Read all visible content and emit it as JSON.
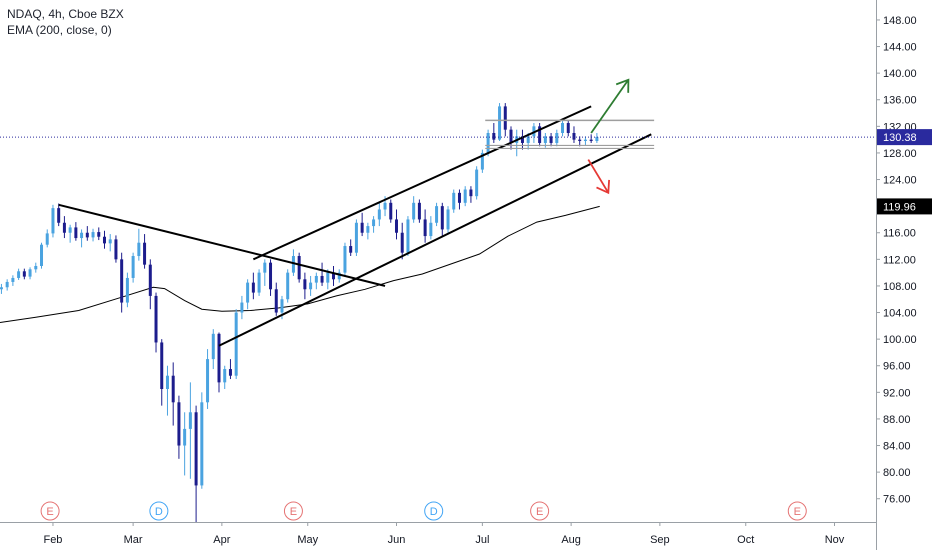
{
  "header": {
    "symbol_line": "NDAQ, 4h, Cboe BZX",
    "indicator_line": "EMA (200, close, 0)"
  },
  "chart_data": {
    "type": "candlestick",
    "y_ticks": [
      76,
      80,
      84,
      88,
      92,
      96,
      100,
      104,
      108,
      112,
      116,
      120,
      124,
      128,
      132,
      136,
      140,
      144,
      148
    ],
    "y_tick_labels": [
      "76.00",
      "80.00",
      "84.00",
      "88.00",
      "92.00",
      "96.00",
      "100.00",
      "104.00",
      "108.00",
      "112.00",
      "116.00",
      "120.00",
      "124.00",
      "128.00",
      "132.00",
      "136.00",
      "140.00",
      "144.00",
      "148.00"
    ],
    "ylim": [
      72.5,
      151
    ],
    "x_ticks": [
      {
        "label": "Feb",
        "day": 31
      },
      {
        "label": "Mar",
        "day": 59
      },
      {
        "label": "Apr",
        "day": 90
      },
      {
        "label": "May",
        "day": 120
      },
      {
        "label": "Jun",
        "day": 151
      },
      {
        "label": "Jul",
        "day": 181
      },
      {
        "label": "Aug",
        "day": 212
      },
      {
        "label": "Sep",
        "day": 243
      },
      {
        "label": "Oct",
        "day": 273
      },
      {
        "label": "Nov",
        "day": 304
      }
    ],
    "xlim_days": [
      12.5,
      318.5
    ],
    "last_price": {
      "label": "130.38",
      "value": 130.38,
      "color": "#2a2a9e"
    },
    "ema_price": {
      "label": "119.96",
      "value": 119.96,
      "color": "#000000"
    },
    "ema": {
      "name": "EMA (200, close, 0)",
      "color": "#000000",
      "points": [
        [
          12.5,
          102.5
        ],
        [
          25,
          103.3
        ],
        [
          40,
          104.3
        ],
        [
          55,
          106.3
        ],
        [
          66,
          107.8
        ],
        [
          70,
          107.6
        ],
        [
          77,
          105.8
        ],
        [
          83,
          104.5
        ],
        [
          90,
          104.2
        ],
        [
          100,
          104.3
        ],
        [
          110,
          104.7
        ],
        [
          120,
          105.3
        ],
        [
          130,
          106.5
        ],
        [
          140,
          107.5
        ],
        [
          150,
          108.8
        ],
        [
          160,
          109.8
        ],
        [
          170,
          111.3
        ],
        [
          180,
          112.8
        ],
        [
          190,
          115.5
        ],
        [
          200,
          117.6
        ],
        [
          210,
          118.6
        ],
        [
          222,
          119.96
        ]
      ]
    },
    "candles": [
      [
        13,
        107.5,
        108.3,
        106.8,
        107.8
      ],
      [
        15,
        107.8,
        109.0,
        107.3,
        108.6
      ],
      [
        17,
        108.6,
        109.6,
        108.0,
        109.2
      ],
      [
        19,
        109.2,
        110.6,
        108.9,
        110.2
      ],
      [
        21,
        110.2,
        110.6,
        109.0,
        109.4
      ],
      [
        23,
        109.4,
        110.8,
        109.0,
        110.5
      ],
      [
        25,
        110.5,
        111.5,
        110.0,
        111.0
      ],
      [
        27,
        111.0,
        114.5,
        110.6,
        114.2
      ],
      [
        29,
        114.2,
        116.5,
        113.8,
        115.9
      ],
      [
        31,
        115.9,
        120.2,
        115.3,
        119.7
      ],
      [
        33,
        119.7,
        120.4,
        117.0,
        117.5
      ],
      [
        35,
        117.5,
        118.5,
        115.2,
        116.0
      ],
      [
        37,
        116.0,
        117.2,
        114.5,
        116.8
      ],
      [
        39,
        116.8,
        117.6,
        114.8,
        115.2
      ],
      [
        41,
        115.2,
        116.5,
        113.8,
        116.0
      ],
      [
        43,
        116.0,
        117.0,
        114.8,
        115.3
      ],
      [
        45,
        115.3,
        116.6,
        114.7,
        116.1
      ],
      [
        47,
        116.1,
        116.8,
        114.9,
        115.4
      ],
      [
        49,
        115.4,
        116.3,
        113.6,
        114.4
      ],
      [
        51,
        114.4,
        115.8,
        113.2,
        115.0
      ],
      [
        53,
        115.0,
        115.6,
        111.5,
        112.0
      ],
      [
        55,
        112.0,
        113.0,
        104.0,
        105.5
      ],
      [
        57,
        105.5,
        110.0,
        104.8,
        109.2
      ],
      [
        59,
        109.2,
        113.0,
        108.5,
        112.5
      ],
      [
        61,
        112.5,
        116.6,
        111.8,
        114.5
      ],
      [
        63,
        114.5,
        115.8,
        110.6,
        111.2
      ],
      [
        65,
        111.2,
        112.0,
        104.5,
        106.5
      ],
      [
        67,
        106.5,
        107.0,
        98.0,
        99.5
      ],
      [
        69,
        99.5,
        100.0,
        90.0,
        92.5
      ],
      [
        71,
        92.5,
        96.0,
        88.5,
        94.5
      ],
      [
        73,
        94.5,
        96.5,
        87.0,
        90.5
      ],
      [
        75,
        90.5,
        91.5,
        82.0,
        84.0
      ],
      [
        77,
        84.0,
        89.0,
        79.5,
        86.5
      ],
      [
        79,
        86.5,
        93.5,
        79.0,
        89.0
      ],
      [
        81,
        89.0,
        90.0,
        72.5,
        78.0
      ],
      [
        83,
        78.0,
        92.0,
        77.5,
        90.5
      ],
      [
        85,
        90.5,
        98.5,
        89.5,
        97.0
      ],
      [
        87,
        97.0,
        101.5,
        95.5,
        100.8
      ],
      [
        89,
        100.8,
        101.0,
        92.0,
        93.5
      ],
      [
        91,
        93.5,
        96.0,
        92.5,
        95.5
      ],
      [
        93,
        95.5,
        97.0,
        94.0,
        94.5
      ],
      [
        95,
        94.5,
        104.5,
        94.0,
        104.0
      ],
      [
        97,
        104.0,
        106.5,
        103.0,
        105.5
      ],
      [
        99,
        105.5,
        109.0,
        104.5,
        108.5
      ],
      [
        101,
        108.5,
        110.0,
        106.0,
        107.0
      ],
      [
        103,
        107.0,
        110.5,
        106.5,
        110.0
      ],
      [
        105,
        110.0,
        112.0,
        108.0,
        111.5
      ],
      [
        107,
        111.5,
        112.0,
        106.5,
        107.5
      ],
      [
        109,
        107.5,
        108.5,
        103.5,
        104.0
      ],
      [
        111,
        104.0,
        106.5,
        103.0,
        106.0
      ],
      [
        113,
        106.0,
        110.5,
        105.5,
        110.0
      ],
      [
        115,
        110.0,
        113.5,
        109.5,
        112.5
      ],
      [
        117,
        112.5,
        113.0,
        108.5,
        109.0
      ],
      [
        119,
        109.0,
        110.0,
        106.0,
        107.5
      ],
      [
        121,
        107.5,
        109.5,
        106.5,
        108.5
      ],
      [
        123,
        108.5,
        110.0,
        107.5,
        109.5
      ],
      [
        125,
        109.5,
        111.5,
        108.0,
        108.5
      ],
      [
        127,
        108.5,
        110.5,
        107.5,
        110.0
      ],
      [
        129,
        110.0,
        111.0,
        108.0,
        109.0
      ],
      [
        131,
        109.0,
        110.5,
        108.5,
        110.0
      ],
      [
        133,
        110.0,
        114.5,
        109.5,
        114.0
      ],
      [
        135,
        114.0,
        115.0,
        112.5,
        113.0
      ],
      [
        137,
        113.0,
        118.0,
        112.5,
        117.5
      ],
      [
        139,
        117.5,
        119.0,
        115.5,
        116.0
      ],
      [
        141,
        116.0,
        117.5,
        115.0,
        117.0
      ],
      [
        143,
        117.0,
        118.5,
        116.0,
        118.0
      ],
      [
        145,
        118.0,
        120.5,
        117.0,
        119.5
      ],
      [
        147,
        119.5,
        121.5,
        118.5,
        120.5
      ],
      [
        149,
        120.5,
        121.0,
        117.5,
        118.0
      ],
      [
        151,
        118.0,
        119.5,
        115.0,
        116.0
      ],
      [
        153,
        116.0,
        117.5,
        112.0,
        113.0
      ],
      [
        155,
        113.0,
        118.5,
        112.5,
        118.0
      ],
      [
        157,
        118.0,
        121.5,
        117.5,
        120.5
      ],
      [
        159,
        120.5,
        121.0,
        117.5,
        118.0
      ],
      [
        161,
        118.0,
        119.5,
        114.5,
        115.5
      ],
      [
        163,
        115.5,
        118.5,
        115.0,
        117.5
      ],
      [
        165,
        117.5,
        120.5,
        117.0,
        120.0
      ],
      [
        167,
        120.0,
        120.5,
        115.5,
        116.5
      ],
      [
        169,
        116.5,
        120.0,
        116.0,
        119.5
      ],
      [
        171,
        119.5,
        122.5,
        119.0,
        122.0
      ],
      [
        173,
        122.0,
        122.5,
        119.5,
        120.5
      ],
      [
        175,
        120.5,
        123.0,
        120.0,
        122.5
      ],
      [
        177,
        122.5,
        123.0,
        120.5,
        121.5
      ],
      [
        179,
        121.5,
        126.0,
        121.0,
        125.5
      ],
      [
        181,
        125.5,
        128.5,
        125.0,
        128.0
      ],
      [
        183,
        128.0,
        131.5,
        127.5,
        131.0
      ],
      [
        185,
        131.0,
        132.5,
        129.5,
        130.0
      ],
      [
        187,
        130.0,
        135.5,
        129.8,
        135.0
      ],
      [
        189,
        135.0,
        135.5,
        130.5,
        131.5
      ],
      [
        191,
        131.5,
        132.0,
        128.5,
        129.5
      ],
      [
        193,
        129.5,
        131.5,
        127.5,
        130.5
      ],
      [
        195,
        130.5,
        131.5,
        128.5,
        129.5
      ],
      [
        197,
        129.5,
        131.0,
        128.5,
        130.5
      ],
      [
        199,
        130.5,
        132.5,
        129.5,
        132.0
      ],
      [
        201,
        132.0,
        132.5,
        129.0,
        129.5
      ],
      [
        203,
        129.5,
        131.0,
        128.8,
        130.5
      ],
      [
        205,
        130.5,
        131.0,
        129.0,
        129.5
      ],
      [
        207,
        129.5,
        131.5,
        129.0,
        131.0
      ],
      [
        209,
        131.0,
        133.0,
        130.5,
        132.5
      ],
      [
        211,
        132.5,
        132.8,
        130.5,
        131.0
      ],
      [
        213,
        131.0,
        132.0,
        129.5,
        130.0
      ],
      [
        215,
        130.0,
        130.5,
        129.0,
        129.8
      ],
      [
        217,
        129.8,
        130.5,
        129.2,
        130.0
      ],
      [
        219,
        130.0,
        130.8,
        129.5,
        129.8
      ],
      [
        221,
        129.8,
        131.0,
        129.5,
        130.4
      ]
    ],
    "trend_lines": [
      {
        "name": "descending-trendline",
        "from": [
          33,
          120.2
        ],
        "to": [
          147,
          108.0
        ]
      },
      {
        "name": "channel-upper-line",
        "from": [
          101,
          112.0
        ],
        "to": [
          219,
          135.0
        ]
      },
      {
        "name": "channel-lower-line",
        "from": [
          89,
          99.0
        ],
        "to": [
          240,
          130.8
        ]
      }
    ],
    "horizontal_levels": [
      {
        "name": "resistance-level",
        "from": 182,
        "to": 241,
        "value": 132.9,
        "double": false
      },
      {
        "name": "support-level",
        "from": 182,
        "to": 241,
        "value": 128.9,
        "double": true
      }
    ],
    "arrows": [
      {
        "name": "up-arrow",
        "color": "#2e7d32",
        "from": [
          219,
          131.0
        ],
        "to": [
          232,
          139.0
        ]
      },
      {
        "name": "down-arrow",
        "color": "#e53935",
        "from": [
          218,
          127.0
        ],
        "to": [
          225,
          122.0
        ]
      }
    ],
    "events": [
      {
        "label": "E",
        "day": 30,
        "color": "#e57373"
      },
      {
        "label": "D",
        "day": 68,
        "color": "#42a5f5"
      },
      {
        "label": "E",
        "day": 115,
        "color": "#e57373"
      },
      {
        "label": "D",
        "day": 164,
        "color": "#42a5f5"
      },
      {
        "label": "E",
        "day": 201,
        "color": "#e57373"
      },
      {
        "label": "E",
        "day": 291,
        "color": "#e57373"
      }
    ],
    "colors": {
      "candle_up": "#4aa3e0",
      "candle_down": "#1c1c8c",
      "price_line": "#2a2a9e",
      "axis_text": "#131722"
    }
  }
}
